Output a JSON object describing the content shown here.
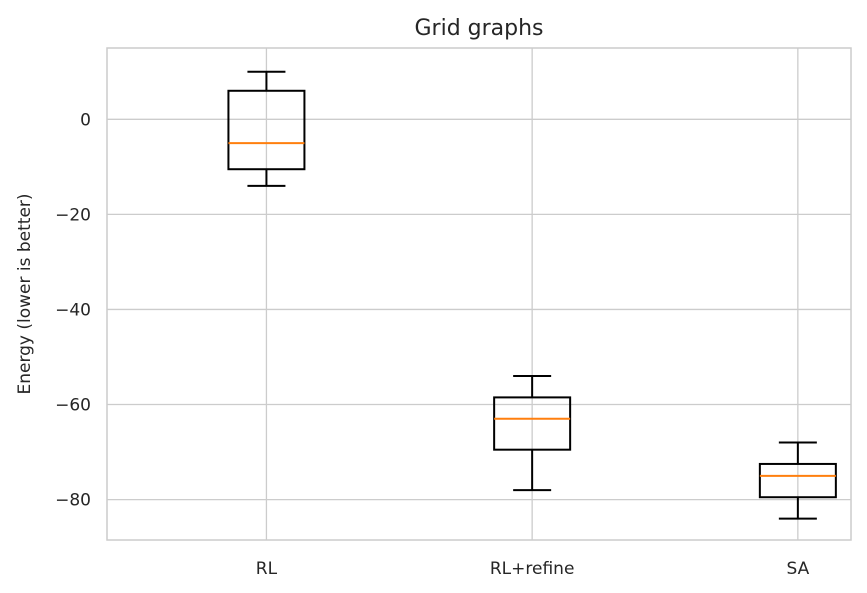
{
  "chart_data": {
    "type": "box",
    "title": "Grid graphs",
    "xlabel": "",
    "ylabel": "Energy (lower is better)",
    "ylim": [
      -88.5,
      15
    ],
    "yticks": [
      0,
      -20,
      -40,
      -60,
      -80
    ],
    "ytick_labels": [
      "0",
      "−20",
      "−40",
      "−60",
      "−80"
    ],
    "grid": true,
    "categories": [
      "RL",
      "RL+refine",
      "SA"
    ],
    "boxes": [
      {
        "category": "RL",
        "whisker_low": -14,
        "q1": -10.5,
        "median": -5,
        "q3": 6,
        "whisker_high": 10
      },
      {
        "category": "RL+refine",
        "whisker_low": -78,
        "q1": -69.5,
        "median": -63,
        "q3": -58.5,
        "whisker_high": -54
      },
      {
        "category": "SA",
        "whisker_low": -84,
        "q1": -79.5,
        "median": -75,
        "q3": -72.5,
        "whisker_high": -68
      }
    ],
    "colors": {
      "box": "#000000",
      "median": "#ff7f0e",
      "grid": "#cccccc"
    }
  }
}
